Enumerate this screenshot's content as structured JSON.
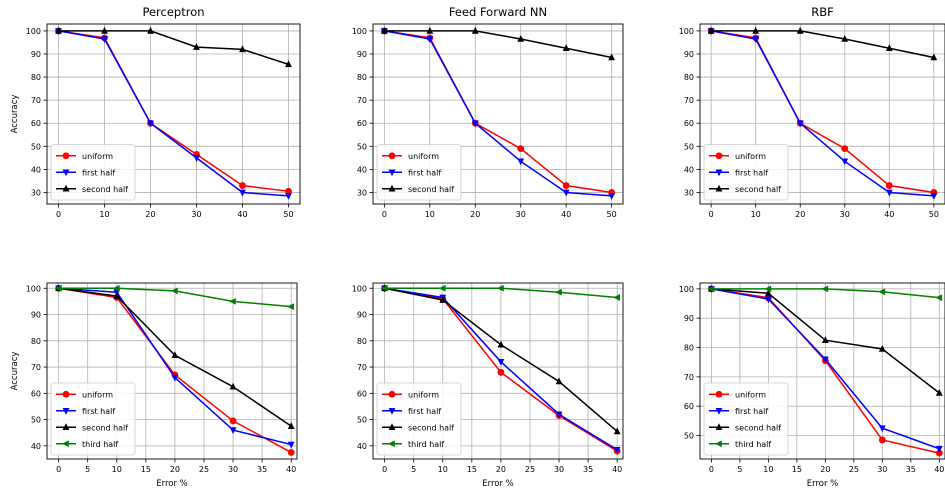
{
  "chart_data": [
    {
      "type": "line",
      "title": "Perceptron",
      "xlabel": "",
      "ylabel": "Accuracy",
      "x": [
        0,
        10,
        20,
        30,
        40,
        50
      ],
      "xticks": [
        0,
        10,
        20,
        30,
        40,
        50
      ],
      "xlim": [
        -2.5,
        52.5
      ],
      "yticks": [
        30,
        40,
        50,
        60,
        70,
        80,
        90,
        100
      ],
      "ylim": [
        25,
        103
      ],
      "grid": true,
      "legend": "lower-left",
      "series": [
        {
          "name": "uniform",
          "color": "#ff0000",
          "marker": "circle",
          "values": [
            100,
            97,
            60,
            46.5,
            33,
            30.5
          ]
        },
        {
          "name": "first half",
          "color": "#0000ff",
          "marker": "triangle-down",
          "values": [
            100,
            96.5,
            60,
            45,
            30,
            28.5
          ]
        },
        {
          "name": "second half",
          "color": "#000000",
          "marker": "triangle-up",
          "values": [
            100,
            100,
            100,
            93,
            92,
            85.5
          ]
        }
      ]
    },
    {
      "type": "line",
      "title": "Feed Forward NN",
      "xlabel": "",
      "ylabel": "",
      "x": [
        0,
        10,
        20,
        30,
        40,
        50
      ],
      "xticks": [
        0,
        10,
        20,
        30,
        40,
        50
      ],
      "xlim": [
        -2.5,
        52.5
      ],
      "yticks": [
        30,
        40,
        50,
        60,
        70,
        80,
        90,
        100
      ],
      "ylim": [
        25,
        103
      ],
      "grid": true,
      "legend": "lower-left",
      "series": [
        {
          "name": "uniform",
          "color": "#ff0000",
          "marker": "circle",
          "values": [
            100,
            97,
            60,
            49,
            33,
            30
          ]
        },
        {
          "name": "first half",
          "color": "#0000ff",
          "marker": "triangle-down",
          "values": [
            100,
            96.5,
            60,
            43.5,
            30,
            28.5
          ]
        },
        {
          "name": "second half",
          "color": "#000000",
          "marker": "triangle-up",
          "values": [
            100,
            100,
            100,
            96.5,
            92.5,
            88.5
          ]
        }
      ]
    },
    {
      "type": "line",
      "title": "RBF",
      "xlabel": "",
      "ylabel": "",
      "x": [
        0,
        10,
        20,
        30,
        40,
        50
      ],
      "xticks": [
        0,
        10,
        20,
        30,
        40,
        50
      ],
      "xlim": [
        -2.5,
        52.5
      ],
      "yticks": [
        30,
        40,
        50,
        60,
        70,
        80,
        90,
        100
      ],
      "ylim": [
        25,
        103
      ],
      "grid": true,
      "legend": "lower-left",
      "series": [
        {
          "name": "uniform",
          "color": "#ff0000",
          "marker": "circle",
          "values": [
            100,
            97,
            60,
            49,
            33,
            30
          ]
        },
        {
          "name": "first half",
          "color": "#0000ff",
          "marker": "triangle-down",
          "values": [
            100,
            96.5,
            60,
            43.5,
            30,
            28.5
          ]
        },
        {
          "name": "second half",
          "color": "#000000",
          "marker": "triangle-up",
          "values": [
            100,
            100,
            100,
            96.5,
            92.5,
            88.5
          ]
        }
      ]
    },
    {
      "type": "line",
      "title": "",
      "xlabel": "Error %",
      "ylabel": "Accuracy",
      "x": [
        0,
        10,
        20,
        30,
        40
      ],
      "xticks": [
        0,
        5,
        10,
        15,
        20,
        25,
        30,
        35,
        40
      ],
      "xlim": [
        -2,
        41
      ],
      "yticks": [
        40,
        50,
        60,
        70,
        80,
        90,
        100
      ],
      "ylim": [
        35,
        102
      ],
      "grid": true,
      "legend": "lower-left",
      "series": [
        {
          "name": "uniform",
          "color": "#ff0000",
          "marker": "circle",
          "values": [
            100,
            96.5,
            67,
            49.5,
            37.5
          ]
        },
        {
          "name": "first half",
          "color": "#0000ff",
          "marker": "triangle-down",
          "values": [
            100,
            98.5,
            66,
            46,
            40.5
          ]
        },
        {
          "name": "second half",
          "color": "#000000",
          "marker": "triangle-up",
          "values": [
            100,
            97,
            74.5,
            62.5,
            47.5
          ]
        },
        {
          "name": "third half",
          "color": "#008000",
          "marker": "triangle-left",
          "values": [
            100,
            100,
            99,
            95,
            93
          ]
        }
      ]
    },
    {
      "type": "line",
      "title": "",
      "xlabel": "Error %",
      "ylabel": "",
      "x": [
        0,
        10,
        20,
        30,
        40
      ],
      "xticks": [
        0,
        5,
        10,
        15,
        20,
        25,
        30,
        35,
        40
      ],
      "xlim": [
        -2,
        41
      ],
      "yticks": [
        40,
        50,
        60,
        70,
        80,
        90,
        100
      ],
      "ylim": [
        35,
        102
      ],
      "grid": true,
      "legend": "lower-left",
      "series": [
        {
          "name": "uniform",
          "color": "#ff0000",
          "marker": "circle",
          "values": [
            100,
            96,
            68,
            51.5,
            38
          ]
        },
        {
          "name": "first half",
          "color": "#0000ff",
          "marker": "triangle-down",
          "values": [
            100,
            96.5,
            72,
            52,
            38.5
          ]
        },
        {
          "name": "second half",
          "color": "#000000",
          "marker": "triangle-up",
          "values": [
            100,
            95.5,
            78.5,
            64.5,
            45.5
          ]
        },
        {
          "name": "third half",
          "color": "#008000",
          "marker": "triangle-left",
          "values": [
            100,
            100,
            100,
            98.5,
            96.5
          ]
        }
      ]
    },
    {
      "type": "line",
      "title": "",
      "xlabel": "Error %",
      "ylabel": "",
      "x": [
        0,
        10,
        20,
        30,
        40
      ],
      "xticks": [
        0,
        5,
        10,
        15,
        20,
        25,
        30,
        35,
        40
      ],
      "xlim": [
        -2,
        41
      ],
      "yticks": [
        50,
        60,
        70,
        80,
        90,
        100
      ],
      "ylim": [
        42,
        102
      ],
      "grid": true,
      "legend": "lower-left",
      "series": [
        {
          "name": "uniform",
          "color": "#ff0000",
          "marker": "circle",
          "values": [
            100,
            97,
            75.5,
            48.5,
            44
          ]
        },
        {
          "name": "first half",
          "color": "#0000ff",
          "marker": "triangle-down",
          "values": [
            100,
            96.5,
            76,
            52.5,
            45.5
          ]
        },
        {
          "name": "second half",
          "color": "#000000",
          "marker": "triangle-up",
          "values": [
            100,
            98.5,
            82.5,
            79.5,
            64.5
          ]
        },
        {
          "name": "third half",
          "color": "#008000",
          "marker": "triangle-left",
          "values": [
            100,
            100,
            100,
            99,
            97
          ]
        }
      ]
    }
  ]
}
